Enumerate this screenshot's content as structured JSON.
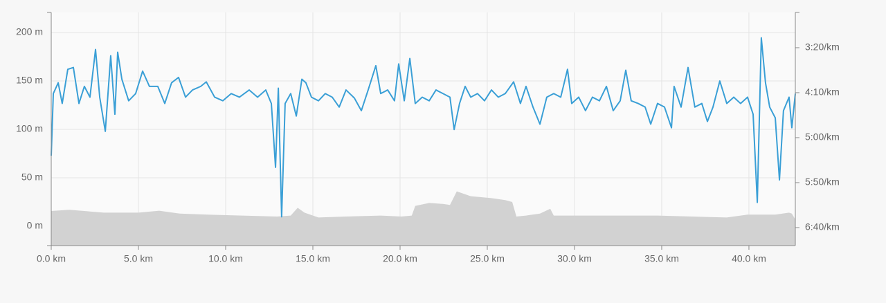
{
  "chart_data": {
    "type": "line",
    "xlim": [
      0,
      42.66
    ],
    "xticks": [
      {
        "value": 0,
        "label": "0.0 km"
      },
      {
        "value": 5,
        "label": "5.0 km"
      },
      {
        "value": 10,
        "label": "10.0 km"
      },
      {
        "value": 15,
        "label": "15.0 km"
      },
      {
        "value": 20,
        "label": "20.0 km"
      },
      {
        "value": 25,
        "label": "25.0 km"
      },
      {
        "value": 30,
        "label": "30.0 km"
      },
      {
        "value": 35,
        "label": "35.0 km"
      },
      {
        "value": 40,
        "label": "40.0 km"
      }
    ],
    "ylim": [
      -20,
      220.7
    ],
    "yticks": [
      {
        "value": 0,
        "label": "0 m"
      },
      {
        "value": 50,
        "label": "50 m"
      },
      {
        "value": 100,
        "label": "100 m"
      },
      {
        "value": 150,
        "label": "150 m"
      },
      {
        "value": 200,
        "label": "200 m"
      }
    ],
    "y2lim": [
      420,
      160.8
    ],
    "y2ticks": [
      {
        "value": 200,
        "label": "3:20/km"
      },
      {
        "value": 250,
        "label": "4:10/km"
      },
      {
        "value": 300,
        "label": "5:00/km"
      },
      {
        "value": 350,
        "label": "5:50/km"
      },
      {
        "value": 400,
        "label": "6:40/km"
      }
    ],
    "grid": true,
    "series": [
      {
        "type": "area",
        "color": "#d2d2d2",
        "x": [
          0,
          1.03,
          3.02,
          5,
          6.19,
          7.38,
          8.97,
          10.95,
          12.94,
          13.73,
          14.13,
          14.52,
          15.32,
          16.9,
          18.89,
          20.08,
          20.67,
          20.87,
          21.67,
          22.46,
          22.86,
          23.25,
          24.05,
          25.24,
          26.03,
          26.43,
          26.67,
          27.22,
          28.02,
          28.61,
          28.81,
          30.79,
          32.78,
          34.76,
          36.75,
          38.73,
          39.92,
          41.51,
          42.3,
          42.46,
          42.66
        ],
        "values": [
          15.7,
          17,
          14,
          14,
          16,
          13,
          12,
          11,
          10,
          11,
          19,
          14,
          9,
          10,
          11,
          10,
          11,
          21,
          24,
          23,
          22,
          36,
          31,
          29,
          27,
          25,
          10,
          11,
          13,
          18,
          11,
          11,
          11,
          11,
          10,
          9,
          12,
          12,
          14,
          13,
          7
        ]
      },
      {
        "type": "line",
        "axis": "y2",
        "color": "#3a9fd6",
        "x": [
          0,
          0.12,
          0.4,
          0.63,
          0.95,
          1.27,
          1.59,
          1.9,
          2.22,
          2.54,
          2.78,
          3.1,
          3.41,
          3.65,
          3.81,
          4.05,
          4.44,
          4.84,
          5.24,
          5.63,
          6.11,
          6.51,
          6.9,
          7.3,
          7.7,
          8.1,
          8.57,
          8.89,
          9.37,
          9.84,
          10.32,
          10.79,
          11.35,
          11.83,
          12.3,
          12.62,
          12.86,
          13.02,
          13.21,
          13.41,
          13.73,
          14.05,
          14.37,
          14.6,
          14.92,
          15.32,
          15.71,
          16.11,
          16.51,
          16.9,
          17.38,
          17.78,
          18.17,
          18.61,
          18.89,
          19.29,
          19.68,
          19.92,
          20.24,
          20.56,
          20.87,
          21.27,
          21.67,
          22.06,
          22.46,
          22.86,
          23.1,
          23.41,
          23.73,
          24.05,
          24.44,
          24.84,
          25.24,
          25.63,
          26.03,
          26.51,
          26.9,
          27.22,
          27.62,
          28.02,
          28.41,
          28.81,
          29.21,
          29.6,
          29.84,
          30.24,
          30.63,
          31.03,
          31.43,
          31.83,
          32.22,
          32.62,
          32.94,
          33.25,
          33.65,
          34.05,
          34.37,
          34.76,
          35.16,
          35.56,
          35.71,
          36.11,
          36.51,
          36.9,
          37.3,
          37.62,
          37.94,
          38.33,
          38.73,
          39.13,
          39.52,
          39.92,
          40.24,
          40.48,
          40.71,
          40.95,
          41.19,
          41.51,
          41.75,
          41.98,
          42.3,
          42.46,
          42.66
        ],
        "values": [
          320,
          251,
          239,
          262,
          224,
          222,
          262,
          243,
          255,
          202,
          255,
          293,
          209,
          274,
          205,
          235,
          259,
          251,
          226,
          243,
          243,
          262,
          239,
          233,
          255,
          247,
          243,
          238,
          255,
          259,
          251,
          255,
          247,
          255,
          247,
          262,
          333,
          245,
          388,
          262,
          251,
          276,
          235,
          239,
          255,
          259,
          251,
          255,
          266,
          247,
          256,
          270,
          247,
          220,
          251,
          247,
          259,
          218,
          259,
          212,
          262,
          255,
          259,
          247,
          251,
          255,
          291,
          262,
          243,
          255,
          251,
          259,
          247,
          255,
          251,
          238,
          262,
          243,
          266,
          285,
          255,
          251,
          255,
          224,
          262,
          255,
          270,
          255,
          259,
          243,
          270,
          259,
          225,
          259,
          262,
          266,
          285,
          262,
          266,
          289,
          243,
          266,
          222,
          266,
          262,
          282,
          266,
          237,
          262,
          255,
          262,
          255,
          274,
          372,
          189,
          239,
          266,
          278,
          347,
          270,
          255,
          289,
          251
        ]
      }
    ]
  }
}
